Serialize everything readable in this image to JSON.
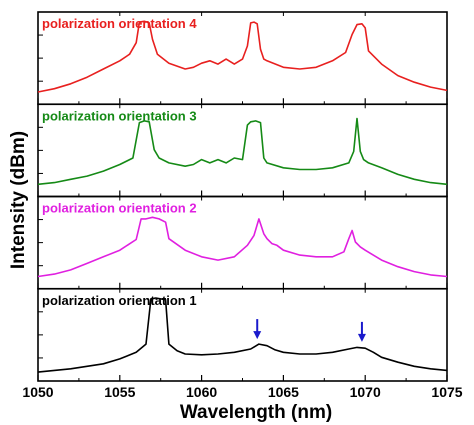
{
  "chart_data": {
    "type": "line",
    "xlabel": "Wavelength (nm)",
    "ylabel": "Intensity (dBm)",
    "xlim": [
      1050,
      1075
    ],
    "xticks": [
      1050,
      1055,
      1060,
      1065,
      1070,
      1075
    ],
    "xtick_labels": [
      "1050",
      "1055",
      "1060",
      "1065",
      "1070",
      "1075"
    ],
    "ylim": [
      0,
      1
    ],
    "grid": false,
    "panels": [
      {
        "label": "polarization orientation 4",
        "color": "#e8201f",
        "x": [
          1050,
          1051,
          1052,
          1053,
          1054,
          1055,
          1055.6,
          1056.0,
          1056.2,
          1056.5,
          1056.8,
          1057.0,
          1057.3,
          1058,
          1059,
          1059.5,
          1060,
          1060.5,
          1061,
          1061.5,
          1062,
          1062.5,
          1062.8,
          1063.0,
          1063.2,
          1063.4,
          1063.6,
          1063.8,
          1064,
          1065,
          1066,
          1067,
          1068,
          1068.8,
          1069.2,
          1069.5,
          1069.8,
          1070.0,
          1070.2,
          1071,
          1072,
          1073,
          1074,
          1075
        ],
        "values": [
          0.1,
          0.14,
          0.2,
          0.28,
          0.38,
          0.48,
          0.56,
          0.7,
          0.95,
          0.96,
          0.94,
          0.74,
          0.56,
          0.45,
          0.38,
          0.4,
          0.45,
          0.48,
          0.44,
          0.5,
          0.44,
          0.5,
          0.66,
          0.94,
          0.95,
          0.93,
          0.62,
          0.5,
          0.48,
          0.4,
          0.38,
          0.4,
          0.48,
          0.58,
          0.8,
          0.92,
          0.93,
          0.88,
          0.6,
          0.44,
          0.3,
          0.22,
          0.16,
          0.12
        ]
      },
      {
        "label": "polarization orientation 3",
        "color": "#158a16",
        "x": [
          1050,
          1051,
          1052,
          1053,
          1054,
          1055,
          1055.8,
          1056.2,
          1056.5,
          1056.8,
          1057.1,
          1057.4,
          1058,
          1059,
          1059.5,
          1060,
          1060.5,
          1061,
          1061.5,
          1062,
          1062.5,
          1062.8,
          1063.0,
          1063.3,
          1063.6,
          1063.8,
          1064,
          1065,
          1066,
          1067,
          1068,
          1069,
          1069.3,
          1069.5,
          1069.7,
          1069.9,
          1070.2,
          1071,
          1072,
          1073,
          1074,
          1075
        ],
        "values": [
          0.1,
          0.12,
          0.16,
          0.2,
          0.26,
          0.34,
          0.42,
          0.85,
          0.87,
          0.86,
          0.52,
          0.42,
          0.36,
          0.32,
          0.34,
          0.4,
          0.36,
          0.4,
          0.36,
          0.42,
          0.4,
          0.82,
          0.86,
          0.87,
          0.85,
          0.42,
          0.36,
          0.3,
          0.28,
          0.28,
          0.3,
          0.36,
          0.5,
          0.9,
          0.5,
          0.4,
          0.36,
          0.3,
          0.22,
          0.16,
          0.12,
          0.1
        ]
      },
      {
        "label": "polarization orientation 2",
        "color": "#e020e0",
        "x": [
          1050,
          1051,
          1052,
          1053,
          1054,
          1055,
          1056,
          1056.3,
          1056.6,
          1057,
          1057.4,
          1057.8,
          1058,
          1059,
          1060,
          1061,
          1062,
          1062.8,
          1063.2,
          1063.5,
          1063.8,
          1064,
          1064.3,
          1064.6,
          1065,
          1066,
          1067,
          1068,
          1068.7,
          1069.0,
          1069.2,
          1069.4,
          1069.7,
          1070,
          1071,
          1072,
          1073,
          1074,
          1075
        ],
        "values": [
          0.1,
          0.13,
          0.18,
          0.26,
          0.34,
          0.42,
          0.55,
          0.8,
          0.8,
          0.82,
          0.8,
          0.76,
          0.56,
          0.42,
          0.34,
          0.3,
          0.34,
          0.48,
          0.6,
          0.8,
          0.62,
          0.56,
          0.5,
          0.48,
          0.42,
          0.36,
          0.34,
          0.34,
          0.4,
          0.56,
          0.66,
          0.52,
          0.46,
          0.42,
          0.3,
          0.22,
          0.16,
          0.12,
          0.1
        ]
      },
      {
        "label": "polarization orientation 1",
        "color": "#000000",
        "x": [
          1050,
          1052,
          1054,
          1055,
          1056,
          1056.6,
          1056.9,
          1057.2,
          1057.5,
          1057.8,
          1058,
          1058.5,
          1059,
          1060,
          1061,
          1062,
          1063,
          1063.5,
          1064,
          1064.5,
          1065,
          1066,
          1067,
          1068,
          1069,
          1069.5,
          1070,
          1070.5,
          1071,
          1072,
          1073,
          1074,
          1075
        ],
        "values": [
          0.06,
          0.1,
          0.16,
          0.22,
          0.3,
          0.4,
          0.95,
          0.96,
          0.95,
          0.94,
          0.4,
          0.32,
          0.28,
          0.27,
          0.28,
          0.3,
          0.34,
          0.4,
          0.38,
          0.33,
          0.3,
          0.28,
          0.28,
          0.3,
          0.34,
          0.36,
          0.35,
          0.3,
          0.24,
          0.18,
          0.13,
          0.1,
          0.08
        ]
      }
    ],
    "annotations": [
      {
        "panel": 3,
        "type": "arrow",
        "x": 1063.4,
        "color": "#1a1acc"
      },
      {
        "panel": 3,
        "type": "arrow",
        "x": 1069.8,
        "color": "#1a1acc"
      }
    ]
  }
}
